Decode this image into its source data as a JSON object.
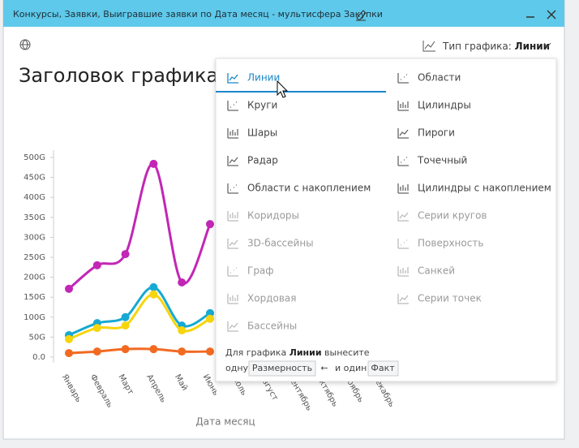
{
  "window": {
    "title": "Конкурсы, Заявки, Выигравшие заявки по Дата месяц - мультисфера Закупки"
  },
  "toolbar": {
    "chart_type_label": "Тип графика:",
    "chart_type_value": "Линии"
  },
  "menu": {
    "columns": [
      [
        {
          "label": "Линии",
          "selected": true,
          "enabled": true
        },
        {
          "label": "Круги",
          "enabled": true
        },
        {
          "label": "Шары",
          "enabled": true
        },
        {
          "label": "Радар",
          "enabled": true
        },
        {
          "label": "Области с накоплением",
          "enabled": true
        },
        {
          "label": "Коридоры",
          "enabled": false
        },
        {
          "label": "3D-бассейны",
          "enabled": false
        },
        {
          "label": "Граф",
          "enabled": false
        },
        {
          "label": "Хордовая",
          "enabled": false
        },
        {
          "label": "Бассейны",
          "enabled": false
        }
      ],
      [
        {
          "label": "Области",
          "enabled": true
        },
        {
          "label": "Цилиндры",
          "enabled": true
        },
        {
          "label": "Пироги",
          "enabled": true
        },
        {
          "label": "Точечный",
          "enabled": true
        },
        {
          "label": "Цилиндры с накоплением",
          "enabled": true
        },
        {
          "label": "Серии кругов",
          "enabled": false
        },
        {
          "label": "Поверхность",
          "enabled": false
        },
        {
          "label": "Санкей",
          "enabled": false
        },
        {
          "label": "Серии точек",
          "enabled": false
        }
      ]
    ]
  },
  "hint": {
    "part1": "Для графика",
    "chart": "Линии",
    "part2": "вынесите",
    "part3": "одну",
    "dimension": "Размерность",
    "arrow": "←",
    "part4": "и один",
    "fact": "Факт"
  },
  "chart_data": {
    "type": "line",
    "title": "Заголовок графика",
    "x_label": "Дата месяц",
    "categories": [
      "Январь",
      "Февраль",
      "Март",
      "Апрель",
      "Май",
      "Июнь",
      "Июль",
      "Август",
      "Сентябрь",
      "Октябрь",
      "Ноябрь",
      "Декабрь"
    ],
    "series": [
      {
        "color": "#c226b5",
        "values": [
          171,
          230,
          258,
          484,
          187,
          333,
          null,
          null,
          null,
          null,
          null,
          null
        ]
      },
      {
        "color": "#17a9d2",
        "values": [
          55,
          85,
          100,
          175,
          79,
          110,
          null,
          null,
          null,
          null,
          null,
          null
        ]
      },
      {
        "color": "#f7d50c",
        "values": [
          45,
          73,
          79,
          157,
          67,
          96,
          null,
          null,
          null,
          null,
          null,
          null
        ]
      },
      {
        "color": "#f26a22",
        "values": [
          10,
          14,
          20,
          20,
          14,
          14,
          null,
          null,
          null,
          null,
          null,
          null
        ]
      }
    ],
    "ylim": [
      0,
      500
    ],
    "yticks": [
      {
        "value": 0,
        "label": "0.0"
      },
      {
        "value": 50,
        "label": "50G"
      },
      {
        "value": 100,
        "label": "100G"
      },
      {
        "value": 150,
        "label": "150G"
      },
      {
        "value": 200,
        "label": "200G"
      },
      {
        "value": 250,
        "label": "250G"
      },
      {
        "value": 300,
        "label": "300G"
      },
      {
        "value": 350,
        "label": "350G"
      },
      {
        "value": 400,
        "label": "400G"
      },
      {
        "value": 450,
        "label": "450G"
      },
      {
        "value": 500,
        "label": "500G"
      }
    ]
  }
}
